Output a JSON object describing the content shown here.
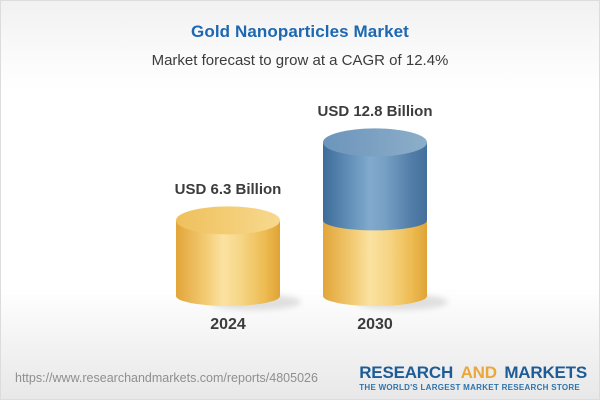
{
  "header": {
    "title": "Gold Nanoparticles Market",
    "subtitle": "Market forecast to grow at a CAGR of 12.4%"
  },
  "chart_data": {
    "type": "bar",
    "subtype": "3d-stacked-cylinder",
    "title": "Gold Nanoparticles Market",
    "categories": [
      "2024",
      "2030"
    ],
    "values": [
      6.3,
      12.8
    ],
    "unit": "USD Billion",
    "cagr_percent": 12.4,
    "legend": "none",
    "bars": [
      {
        "category": "2024",
        "total": 6.3,
        "label": "USD 6.3 Billion",
        "segments": [
          {
            "name": "value-2024",
            "value": 6.3,
            "color": "gold"
          }
        ]
      },
      {
        "category": "2030",
        "total": 12.8,
        "label": "USD 12.8 Billion",
        "segments": [
          {
            "name": "base-2024-level",
            "value": 6.3,
            "color": "gold"
          },
          {
            "name": "growth-to-2030",
            "value": 6.5,
            "color": "blue"
          }
        ]
      }
    ]
  },
  "colors": {
    "title_blue": "#1d68b0",
    "text_dark": "#3c3c3c",
    "bar_gold": "#f4cf7c",
    "bar_blue": "#6e9ac0",
    "logo_blue": "#1d5c96",
    "logo_gold": "#eaa73c",
    "tagline_blue": "#2e74ac",
    "url_gray": "#8f8f8f"
  },
  "footer": {
    "url": "https://www.researchandmarkets.com/reports/4805026",
    "logo": {
      "word1": "RESEARCH",
      "word2": "AND",
      "word3": "MARKETS",
      "tagline": "THE WORLD'S LARGEST MARKET RESEARCH STORE"
    }
  }
}
